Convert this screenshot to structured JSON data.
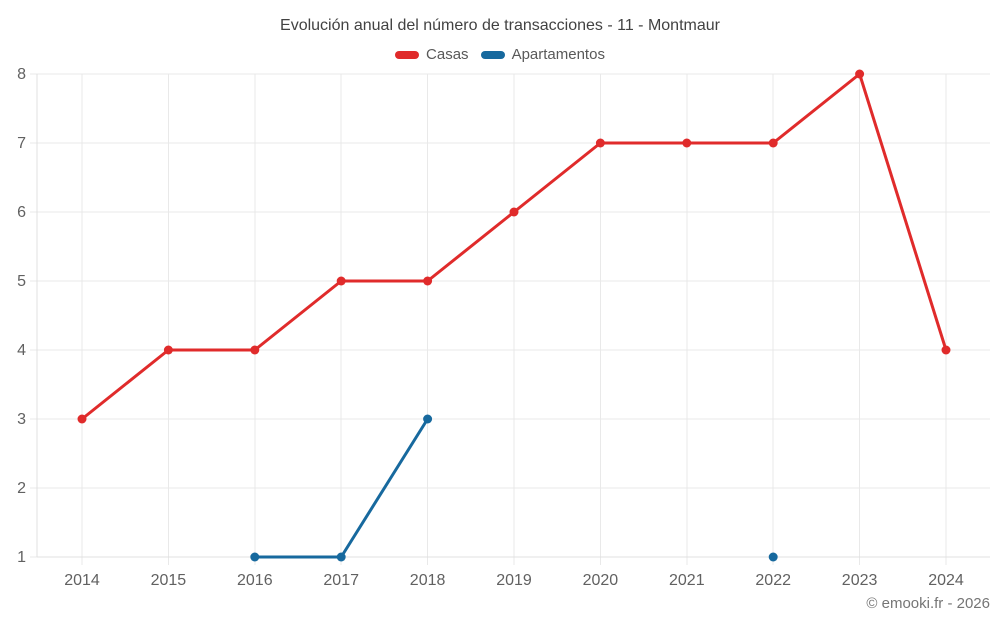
{
  "page": {
    "background": "#ffffff"
  },
  "chart_data": {
    "type": "line",
    "title": "Evolución anual del número de transacciones - 11 - Montmaur",
    "categories": [
      "2014",
      "2015",
      "2016",
      "2017",
      "2018",
      "2019",
      "2020",
      "2021",
      "2022",
      "2023",
      "2024"
    ],
    "series": [
      {
        "name": "Casas",
        "color": "#e02b2b",
        "values": [
          3,
          4,
          4,
          5,
          5,
          6,
          7,
          7,
          7,
          8,
          4
        ]
      },
      {
        "name": "Apartamentos",
        "color": "#17699e",
        "values": [
          null,
          null,
          1,
          1,
          3,
          null,
          null,
          null,
          1,
          null,
          null
        ]
      }
    ],
    "yticks": [
      1,
      2,
      3,
      4,
      5,
      6,
      7,
      8
    ],
    "ylim": [
      1,
      8
    ],
    "grid": true,
    "legend_position": "top",
    "grid_color": "#e9e9e9",
    "axis_color": "#e0e0e0"
  },
  "footer": {
    "copyright": "© emooki.fr - 2026"
  }
}
